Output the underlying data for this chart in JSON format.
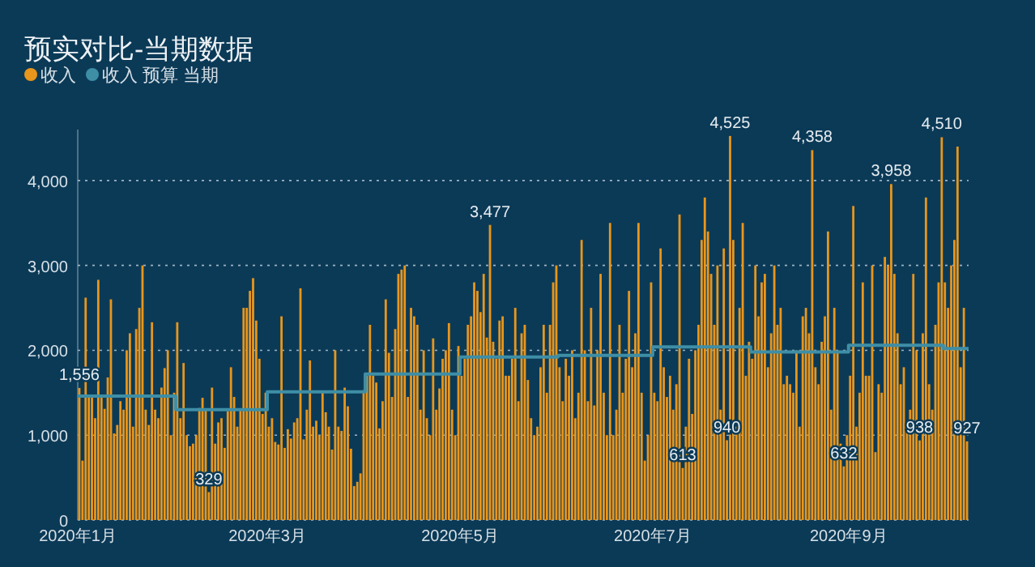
{
  "chart_data": {
    "type": "bar",
    "title": "预实对比-当期数据",
    "xlim": [
      "2020-01-01",
      "2020-10-09"
    ],
    "xticks": [
      {
        "value": "2020-01-01",
        "label": "2020年1月"
      },
      {
        "value": "2020-03-01",
        "label": "2020年3月"
      },
      {
        "value": "2020-05-01",
        "label": "2020年5月"
      },
      {
        "value": "2020-07-01",
        "label": "2020年7月"
      },
      {
        "value": "2020-09-01",
        "label": "2020年9月"
      }
    ],
    "ylim": [
      0,
      4600
    ],
    "yticks": [
      0,
      {
        "value": 1000,
        "label": "1,000"
      },
      {
        "value": 2000,
        "label": "2,000"
      },
      {
        "value": 3000,
        "label": "3,000"
      },
      {
        "value": 4000,
        "label": "4,000"
      }
    ],
    "grid": "y",
    "legend": "top left",
    "series": [
      {
        "name": "收入",
        "color": "#e8961c",
        "x": [
          "2020-01-01",
          "2020-01-02",
          "2020-01-03",
          "2020-01-04",
          "2020-01-05",
          "2020-01-06",
          "2020-01-07",
          "2020-01-08",
          "2020-01-09",
          "2020-01-10",
          "2020-01-11",
          "2020-01-12",
          "2020-01-13",
          "2020-01-14",
          "2020-01-15",
          "2020-01-16",
          "2020-01-17",
          "2020-01-18",
          "2020-01-19",
          "2020-01-20",
          "2020-01-21",
          "2020-01-22",
          "2020-01-23",
          "2020-01-24",
          "2020-01-25",
          "2020-01-26",
          "2020-01-27",
          "2020-01-28",
          "2020-01-29",
          "2020-01-30",
          "2020-01-31",
          "2020-02-01",
          "2020-02-02",
          "2020-02-03",
          "2020-02-04",
          "2020-02-05",
          "2020-02-06",
          "2020-02-07",
          "2020-02-08",
          "2020-02-09",
          "2020-02-10",
          "2020-02-11",
          "2020-02-12",
          "2020-02-13",
          "2020-02-14",
          "2020-02-15",
          "2020-02-16",
          "2020-02-17",
          "2020-02-18",
          "2020-02-19",
          "2020-02-20",
          "2020-02-21",
          "2020-02-22",
          "2020-02-23",
          "2020-02-24",
          "2020-02-25",
          "2020-02-26",
          "2020-02-27",
          "2020-02-28",
          "2020-02-29",
          "2020-03-01",
          "2020-03-02",
          "2020-03-03",
          "2020-03-04",
          "2020-03-05",
          "2020-03-06",
          "2020-03-07",
          "2020-03-08",
          "2020-03-09",
          "2020-03-10",
          "2020-03-11",
          "2020-03-12",
          "2020-03-13",
          "2020-03-14",
          "2020-03-15",
          "2020-03-16",
          "2020-03-17",
          "2020-03-18",
          "2020-03-19",
          "2020-03-20",
          "2020-03-21",
          "2020-03-22",
          "2020-03-23",
          "2020-03-24",
          "2020-03-25",
          "2020-03-26",
          "2020-03-27",
          "2020-03-28",
          "2020-03-29",
          "2020-03-30",
          "2020-03-31",
          "2020-04-01",
          "2020-04-02",
          "2020-04-03",
          "2020-04-04",
          "2020-04-05",
          "2020-04-06",
          "2020-04-07",
          "2020-04-08",
          "2020-04-09",
          "2020-04-10",
          "2020-04-11",
          "2020-04-12",
          "2020-04-13",
          "2020-04-14",
          "2020-04-15",
          "2020-04-16",
          "2020-04-17",
          "2020-04-18",
          "2020-04-19",
          "2020-04-20",
          "2020-04-21",
          "2020-04-22",
          "2020-04-23",
          "2020-04-24",
          "2020-04-25",
          "2020-04-26",
          "2020-04-27",
          "2020-04-28",
          "2020-04-29",
          "2020-04-30",
          "2020-05-01",
          "2020-05-02",
          "2020-05-03",
          "2020-05-04",
          "2020-05-05",
          "2020-05-06",
          "2020-05-07",
          "2020-05-08",
          "2020-05-09",
          "2020-05-10",
          "2020-05-11",
          "2020-05-12",
          "2020-05-13",
          "2020-05-14",
          "2020-05-15",
          "2020-05-16",
          "2020-05-17",
          "2020-05-18",
          "2020-05-19",
          "2020-05-20",
          "2020-05-21",
          "2020-05-22",
          "2020-05-23",
          "2020-05-24",
          "2020-05-25",
          "2020-05-26",
          "2020-05-27",
          "2020-05-28",
          "2020-05-29",
          "2020-05-30",
          "2020-05-31",
          "2020-06-01",
          "2020-06-02",
          "2020-06-03",
          "2020-06-04",
          "2020-06-05",
          "2020-06-06",
          "2020-06-07",
          "2020-06-08",
          "2020-06-09",
          "2020-06-10",
          "2020-06-11",
          "2020-06-12",
          "2020-06-13",
          "2020-06-14",
          "2020-06-15",
          "2020-06-16",
          "2020-06-17",
          "2020-06-18",
          "2020-06-19",
          "2020-06-20",
          "2020-06-21",
          "2020-06-22",
          "2020-06-23",
          "2020-06-24",
          "2020-06-25",
          "2020-06-26",
          "2020-06-27",
          "2020-06-28",
          "2020-06-29",
          "2020-06-30",
          "2020-07-01",
          "2020-07-02",
          "2020-07-03",
          "2020-07-04",
          "2020-07-05",
          "2020-07-06",
          "2020-07-07",
          "2020-07-08",
          "2020-07-09",
          "2020-07-10",
          "2020-07-11",
          "2020-07-12",
          "2020-07-13",
          "2020-07-14",
          "2020-07-15",
          "2020-07-16",
          "2020-07-17",
          "2020-07-18",
          "2020-07-19",
          "2020-07-20",
          "2020-07-21",
          "2020-07-22",
          "2020-07-23",
          "2020-07-24",
          "2020-07-25",
          "2020-07-26",
          "2020-07-27",
          "2020-07-28",
          "2020-07-29",
          "2020-07-30",
          "2020-07-31",
          "2020-08-01",
          "2020-08-02",
          "2020-08-03",
          "2020-08-04",
          "2020-08-05",
          "2020-08-06",
          "2020-08-07",
          "2020-08-08",
          "2020-08-09",
          "2020-08-10",
          "2020-08-11",
          "2020-08-12",
          "2020-08-13",
          "2020-08-14",
          "2020-08-15",
          "2020-08-16",
          "2020-08-17",
          "2020-08-18",
          "2020-08-19",
          "2020-08-20",
          "2020-08-21",
          "2020-08-22",
          "2020-08-23",
          "2020-08-24",
          "2020-08-25",
          "2020-08-26",
          "2020-08-27",
          "2020-08-28",
          "2020-08-29",
          "2020-08-30",
          "2020-08-31",
          "2020-09-01",
          "2020-09-02",
          "2020-09-03",
          "2020-09-04",
          "2020-09-05",
          "2020-09-06",
          "2020-09-07",
          "2020-09-08",
          "2020-09-09",
          "2020-09-10",
          "2020-09-11",
          "2020-09-12",
          "2020-09-13",
          "2020-09-14",
          "2020-09-15",
          "2020-09-16",
          "2020-09-17",
          "2020-09-18",
          "2020-09-19",
          "2020-09-20",
          "2020-09-21",
          "2020-09-22",
          "2020-09-23",
          "2020-09-24",
          "2020-09-25",
          "2020-09-26",
          "2020-09-27",
          "2020-09-28",
          "2020-09-29",
          "2020-09-30",
          "2020-10-01",
          "2020-10-02",
          "2020-10-03",
          "2020-10-04",
          "2020-10-05",
          "2020-10-06",
          "2020-10-07",
          "2020-10-08"
        ],
        "values": [
          1556,
          700,
          2620,
          1470,
          1470,
          1200,
          2830,
          1450,
          1310,
          1680,
          2600,
          1020,
          1120,
          1400,
          1300,
          2000,
          2200,
          1100,
          2250,
          2500,
          3000,
          1300,
          1120,
          2330,
          1300,
          1200,
          1560,
          1790,
          2000,
          1000,
          1500,
          2330,
          1200,
          1850,
          1000,
          870,
          900,
          1000,
          1320,
          1440,
          1300,
          329,
          1560,
          900,
          1150,
          1200,
          850,
          1280,
          1800,
          1450,
          1100,
          1300,
          2500,
          2500,
          2700,
          2850,
          2350,
          1900,
          1250,
          1500,
          1100,
          1200,
          920,
          890,
          2400,
          850,
          1070,
          960,
          1150,
          1200,
          2730,
          950,
          1300,
          1880,
          1100,
          1170,
          1000,
          1500,
          1270,
          1100,
          830,
          2000,
          1100,
          1050,
          1560,
          1340,
          840,
          400,
          450,
          550,
          1530,
          1700,
          2300,
          1700,
          1620,
          1080,
          1400,
          2600,
          1970,
          1450,
          2250,
          2900,
          2950,
          3000,
          1450,
          2500,
          2400,
          2300,
          1300,
          2000,
          1200,
          1000,
          2140,
          1300,
          1550,
          1900,
          2000,
          2320,
          1300,
          1000,
          2050,
          1700,
          1900,
          2300,
          2400,
          2800,
          2700,
          2450,
          2900,
          2150,
          3477,
          2100,
          1900,
          2350,
          2400,
          1700,
          1700,
          1900,
          2500,
          1400,
          2200,
          2300,
          1650,
          1200,
          1000,
          1100,
          1800,
          2300,
          1500,
          2300,
          2800,
          3000,
          1800,
          1400,
          1900,
          1700,
          2000,
          1200,
          1500,
          3300,
          2000,
          1400,
          2500,
          1350,
          2000,
          2900,
          1500,
          1000,
          3500,
          1000,
          1300,
          2300,
          1500,
          1900,
          2700,
          1800,
          2200,
          3500,
          1500,
          700,
          1000,
          2800,
          1500,
          1400,
          3200,
          1800,
          1450,
          1700,
          1300,
          1600,
          3600,
          613,
          1100,
          1900,
          1250,
          2000,
          2300,
          3300,
          3800,
          3400,
          2900,
          2300,
          3000,
          1300,
          3200,
          940,
          4525,
          3300,
          1100,
          2500,
          3500,
          1700,
          2100,
          1900,
          3000,
          2400,
          2800,
          2900,
          1800,
          2200,
          3000,
          2300,
          2500,
          1600,
          1700,
          1600,
          1500,
          2000,
          1100,
          2400,
          2500,
          2200,
          4358,
          1800,
          1600,
          2100,
          2400,
          3400,
          1300,
          2500,
          2000,
          900,
          632,
          1000,
          1700,
          3700,
          1100,
          1500,
          2800,
          1700,
          1700,
          3000,
          800,
          1600,
          1500,
          3100,
          3000,
          3958,
          2900,
          2200,
          1600,
          1800,
          1100,
          1300,
          2900,
          2000,
          938,
          2200,
          3800,
          1600,
          1300,
          2300,
          2800,
          4510,
          2800,
          2500,
          3000,
          3300,
          4400,
          1800,
          2500,
          927
        ],
        "value_labels": [
          "1,556",
          null,
          null,
          null,
          null,
          null,
          null,
          null,
          null,
          null,
          null,
          null,
          null,
          null,
          null,
          null,
          null,
          null,
          null,
          null,
          null,
          null,
          null,
          null,
          null,
          null,
          null,
          null,
          null,
          null,
          null,
          null,
          null,
          null,
          null,
          null,
          null,
          null,
          null,
          null,
          null,
          "329",
          null,
          null,
          null,
          null,
          null,
          null,
          null,
          null,
          null,
          null,
          null,
          null,
          null,
          null,
          null,
          null,
          null,
          null,
          null,
          null,
          null,
          null,
          null,
          null,
          null,
          null,
          null,
          null,
          null,
          null,
          null,
          null,
          null,
          null,
          null,
          null,
          null,
          null,
          null,
          null,
          null,
          null,
          null,
          null,
          null,
          null,
          null,
          null,
          null,
          null,
          null,
          null,
          null,
          null,
          null,
          null,
          null,
          null,
          null,
          null,
          null,
          null,
          null,
          null,
          null,
          null,
          null,
          null,
          null,
          null,
          null,
          null,
          null,
          null,
          null,
          null,
          null,
          null,
          null,
          null,
          null,
          null,
          null,
          null,
          null,
          null,
          null,
          null,
          "3,477",
          null,
          null,
          null,
          null,
          null,
          null,
          null,
          null,
          null,
          null,
          null,
          null,
          null,
          null,
          null,
          null,
          null,
          null,
          null,
          null,
          null,
          null,
          null,
          null,
          null,
          null,
          null,
          null,
          null,
          null,
          null,
          null,
          null,
          null,
          null,
          null,
          null,
          null,
          null,
          null,
          null,
          null,
          null,
          null,
          null,
          null,
          null,
          null,
          null,
          null,
          null,
          null,
          null,
          null,
          null,
          null,
          null,
          null,
          null,
          null,
          "613",
          null,
          null,
          null,
          null,
          null,
          null,
          null,
          null,
          null,
          null,
          null,
          null,
          null,
          "940",
          "4,525",
          null,
          null,
          null,
          null,
          null,
          null,
          null,
          null,
          null,
          null,
          null,
          null,
          null,
          null,
          null,
          null,
          null,
          null,
          null,
          null,
          null,
          null,
          null,
          null,
          null,
          "4,358",
          null,
          null,
          null,
          null,
          null,
          null,
          null,
          null,
          null,
          "632",
          null,
          null,
          null,
          null,
          null,
          null,
          null,
          null,
          null,
          null,
          null,
          null,
          null,
          null,
          "3,958",
          null,
          null,
          null,
          null,
          null,
          null,
          null,
          null,
          "938",
          null,
          null,
          null,
          null,
          null,
          null,
          "4,510",
          null,
          null,
          null,
          null,
          null,
          null,
          null,
          "927"
        ]
      },
      {
        "name": "收入 预算 当期",
        "type": "step",
        "color": "#3e8ea6",
        "x": [
          "2020-01-01",
          "2020-02-01",
          "2020-03-01",
          "2020-04-01",
          "2020-05-01",
          "2020-06-01",
          "2020-07-01",
          "2020-08-01",
          "2020-09-01",
          "2020-10-01",
          "2020-10-09"
        ],
        "values": [
          1460,
          1300,
          1510,
          1720,
          1920,
          1940,
          2040,
          1980,
          2060,
          2020,
          2020
        ]
      }
    ]
  }
}
